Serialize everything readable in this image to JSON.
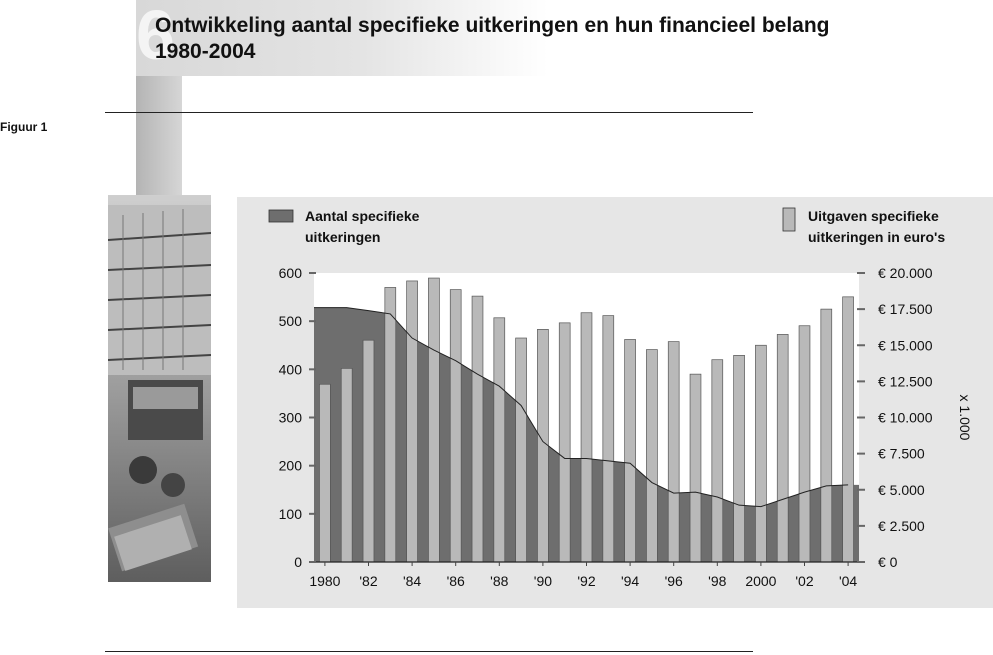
{
  "figure": {
    "ghost_number": "6",
    "title_line1": "Ontwikkeling aantal specifieke uitkeringen en hun financieel belang",
    "title_line2": "1980-2004",
    "label": "Figuur 1"
  },
  "chart_data": {
    "type": "bar",
    "title": "Ontwikkeling aantal specifieke uitkeringen en hun financieel belang 1980-2004",
    "x": [
      1980,
      1981,
      1982,
      1983,
      1984,
      1985,
      1986,
      1987,
      1988,
      1989,
      1990,
      1991,
      1992,
      1993,
      1994,
      1995,
      1996,
      1997,
      1998,
      1999,
      2000,
      2001,
      2002,
      2003,
      2004
    ],
    "x_tick_labels": [
      {
        "year": 1980,
        "label": "1980"
      },
      {
        "year": 1982,
        "label": "'82"
      },
      {
        "year": 1984,
        "label": "'84"
      },
      {
        "year": 1986,
        "label": "'86"
      },
      {
        "year": 1988,
        "label": "'88"
      },
      {
        "year": 1990,
        "label": "'90"
      },
      {
        "year": 1992,
        "label": "'92"
      },
      {
        "year": 1994,
        "label": "'94"
      },
      {
        "year": 1996,
        "label": "'96"
      },
      {
        "year": 1998,
        "label": "'98"
      },
      {
        "year": 2000,
        "label": "2000"
      },
      {
        "year": 2002,
        "label": "'02"
      },
      {
        "year": 2004,
        "label": "'04"
      }
    ],
    "series": [
      {
        "name": "Aantal specifieke uitkeringen",
        "kind": "area",
        "axis": "left",
        "color": "#6e6e6e",
        "values": [
          528,
          528,
          522,
          515,
          465,
          440,
          418,
          390,
          365,
          325,
          250,
          215,
          215,
          210,
          205,
          165,
          143,
          145,
          135,
          118,
          115,
          130,
          145,
          158,
          160
        ]
      },
      {
        "name": "Uitgaven specifieke uitkeringen in euro's",
        "kind": "bar",
        "axis": "right",
        "color": "#b9b9b9",
        "values": [
          12300,
          13400,
          15350,
          19000,
          19450,
          19650,
          18850,
          18400,
          16900,
          15500,
          16100,
          16550,
          17250,
          17050,
          15400,
          14700,
          15250,
          13000,
          14000,
          14300,
          15000,
          15750,
          16350,
          17500,
          18350
        ]
      }
    ],
    "y_left": {
      "min": 0,
      "max": 600,
      "ticks": [
        "0",
        "100",
        "200",
        "300",
        "400",
        "500",
        "600"
      ]
    },
    "y_right": {
      "min": 0,
      "max": 20000,
      "unit_label": "x 1.000",
      "ticks": [
        "€ 0",
        "€ 2.500",
        "€ 5.000",
        "€ 7.500",
        "€ 10.000",
        "€ 12.500",
        "€ 15.000",
        "€ 17.500",
        "€ 20.000"
      ]
    },
    "legend": {
      "left_line1": "Aantal specifieke",
      "left_line2": "uitkeringen",
      "right_line1": "Uitgaven specifieke",
      "right_line2": "uitkeringen in euro's",
      "placement": "top"
    },
    "grid": false,
    "colors": {
      "area": "#6e6e6e",
      "bars": "#b9b9b9",
      "panel": "#e6e6e6",
      "plot": "#ffffff"
    }
  }
}
